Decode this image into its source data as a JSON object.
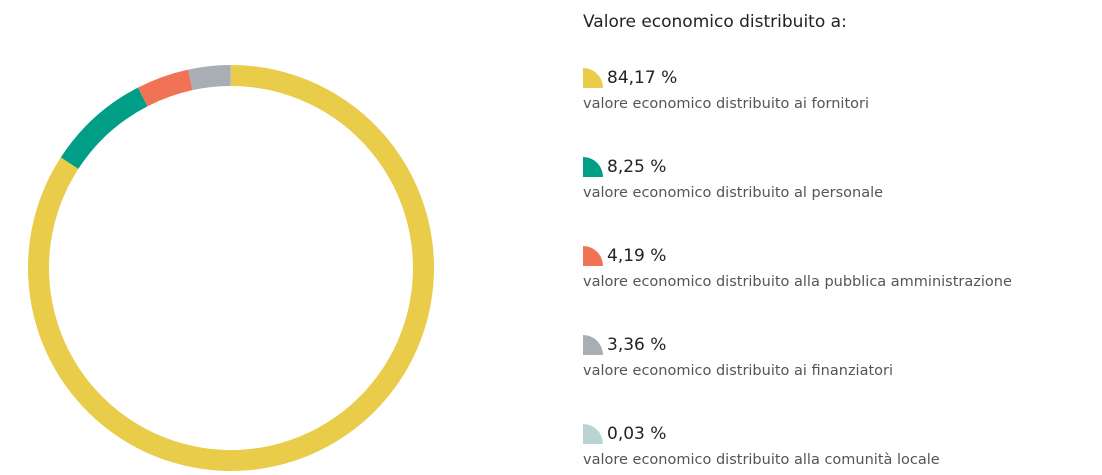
{
  "chart_data": {
    "type": "donut",
    "title": "Valore economico distribuito a:",
    "categories": [
      "valore economico distribuito ai fornitori",
      "valore economico distribuito al personale",
      "valore economico distribuito alla pubblica amministrazione",
      "valore economico distribuito ai finanziatori",
      "valore economico distribuito alla comunità locale"
    ],
    "values": [
      84.17,
      8.25,
      4.19,
      3.36,
      0.03
    ],
    "value_labels": [
      "84,17 %",
      "8,25 %",
      "4,19 %",
      "3,36 %",
      "0,03 %"
    ],
    "colors": [
      "#e8cc4a",
      "#009e87",
      "#f07355",
      "#a8aeb4",
      "#b8d4d4"
    ]
  }
}
